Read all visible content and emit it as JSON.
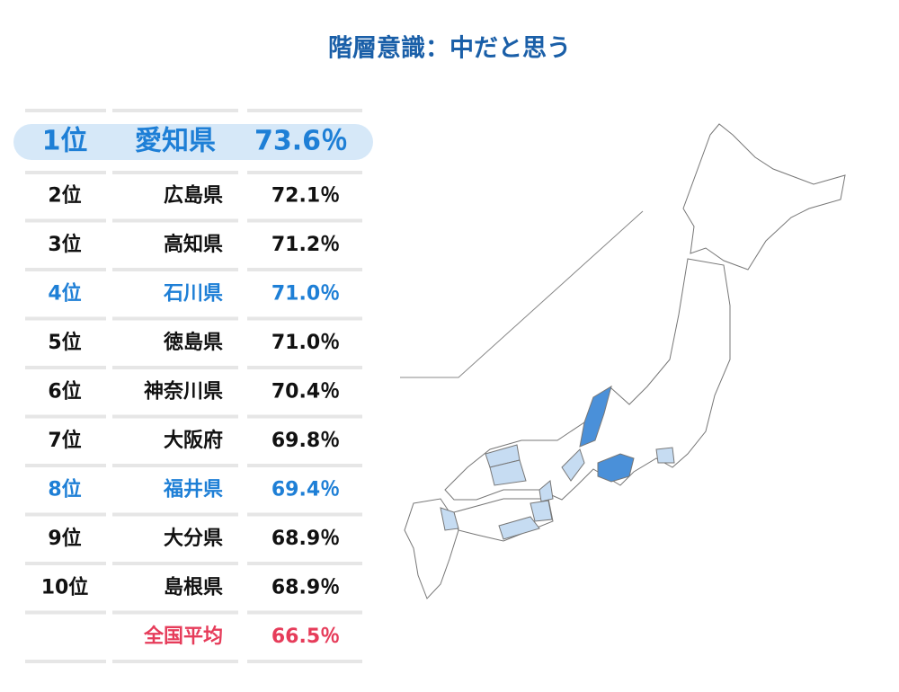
{
  "title": "階層意識：中だと思う",
  "rows": [
    {
      "rank": "1位",
      "prefecture": "愛知県",
      "value": "73.6％",
      "color": "#1e7fd6"
    },
    {
      "rank": "2位",
      "prefecture": "広島県",
      "value": "72.1％",
      "color": "#111111"
    },
    {
      "rank": "3位",
      "prefecture": "高知県",
      "value": "71.2％",
      "color": "#111111"
    },
    {
      "rank": "4位",
      "prefecture": "石川県",
      "value": "71.0％",
      "color": "#1e7fd6"
    },
    {
      "rank": "5位",
      "prefecture": "徳島県",
      "value": "71.0％",
      "color": "#111111"
    },
    {
      "rank": "6位",
      "prefecture": "神奈川県",
      "value": "70.4％",
      "color": "#111111"
    },
    {
      "rank": "7位",
      "prefecture": "大阪府",
      "value": "69.8％",
      "color": "#111111"
    },
    {
      "rank": "8位",
      "prefecture": "福井県",
      "value": "69.4％",
      "color": "#1e7fd6"
    },
    {
      "rank": "9位",
      "prefecture": "大分県",
      "value": "68.9％",
      "color": "#111111"
    },
    {
      "rank": "10位",
      "prefecture": "島根県",
      "value": "68.9％",
      "color": "#111111"
    }
  ],
  "average": {
    "label": "全国平均",
    "value": "66.5％",
    "color": "#e63c5a"
  }
}
